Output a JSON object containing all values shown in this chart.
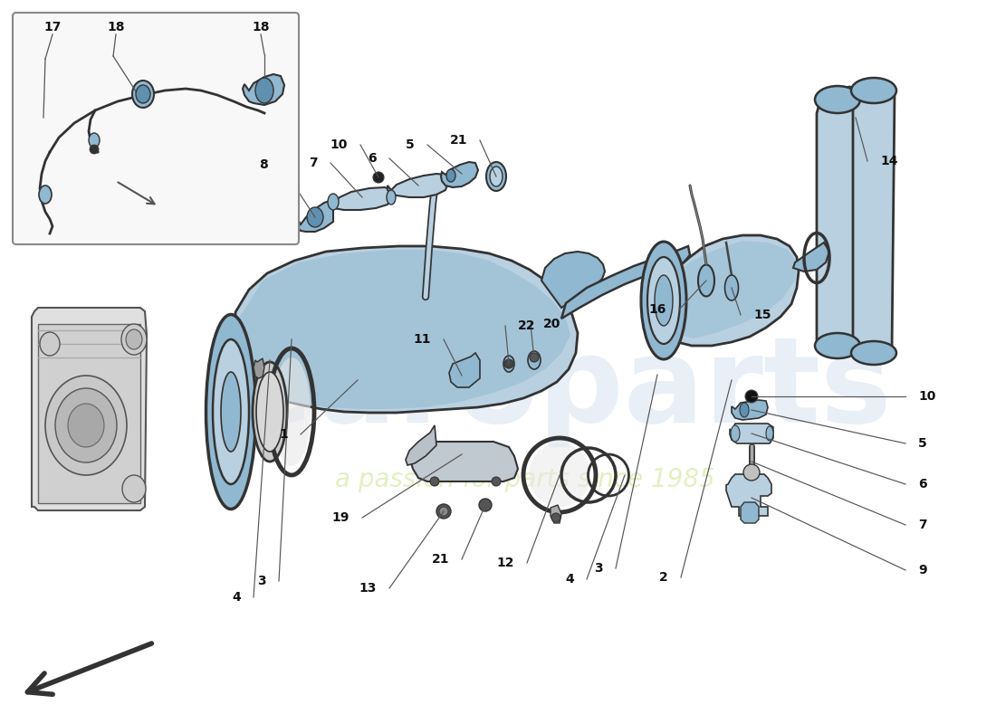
{
  "bg": "#ffffff",
  "lc": "#b8d0e0",
  "mc": "#90b8d0",
  "dc": "#6090b0",
  "oc": "#333333",
  "lnc": "#555555",
  "lbc": "#111111",
  "wm1": "#c5d5e8",
  "wm2": "#d4e8a0",
  "figsize": [
    11.0,
    8.0
  ],
  "dpi": 100
}
